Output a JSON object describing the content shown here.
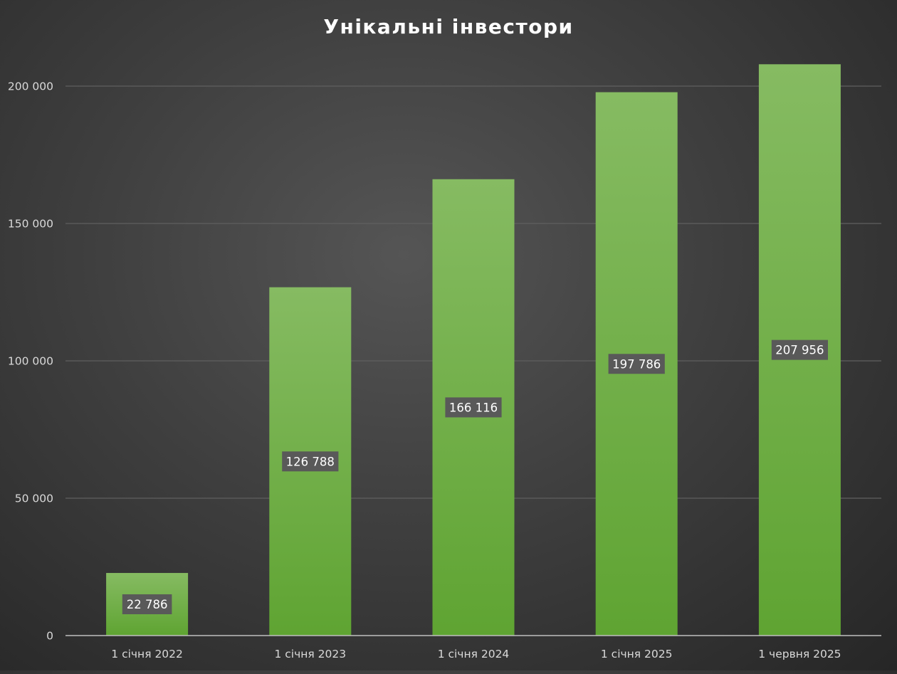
{
  "chart_data": {
    "type": "bar",
    "title": "Унікальні інвестори",
    "categories": [
      "1 січня 2022",
      "1 січня 2023",
      "1 січня 2024",
      "1 січня 2025",
      "1 червня 2025"
    ],
    "values": [
      22786,
      126788,
      166116,
      197786,
      207956
    ],
    "data_labels": [
      "22 786",
      "126 788",
      "166 116",
      "197 786",
      "207 956"
    ],
    "y_ticks": [
      {
        "value": 0,
        "label": "0"
      },
      {
        "value": 50000,
        "label": "50 000"
      },
      {
        "value": 100000,
        "label": "100 000"
      },
      {
        "value": 150000,
        "label": "150 000"
      },
      {
        "value": 200000,
        "label": "200 000"
      }
    ],
    "ylim": [
      0,
      200000
    ],
    "xlabel": "",
    "ylabel": "",
    "grid": true,
    "legend": "none",
    "colors": {
      "bar_top": "#86bb62",
      "bar_bottom": "#5fa432",
      "label_box": "#595959",
      "text": "#d9d9d9"
    }
  }
}
